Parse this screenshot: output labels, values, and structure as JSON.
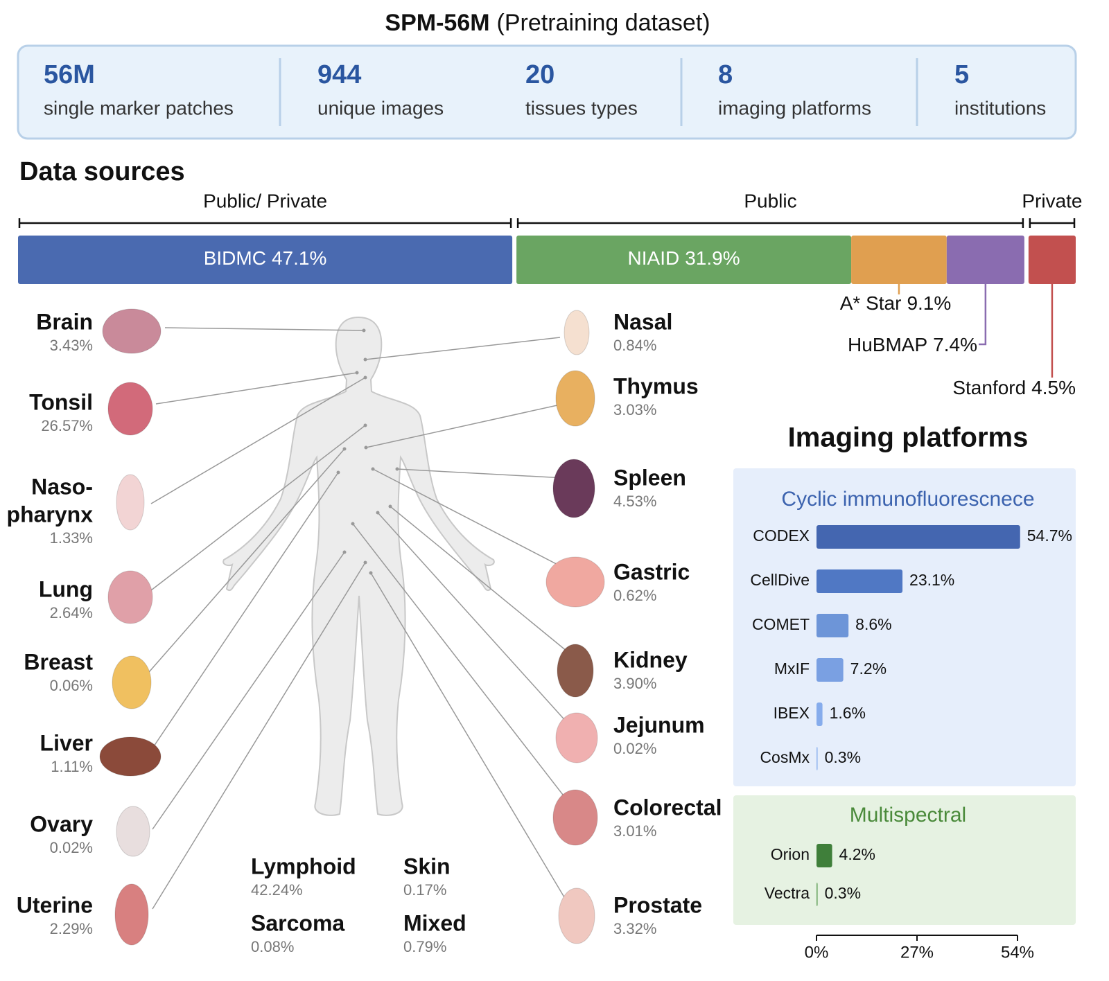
{
  "title": {
    "bold": "SPM-56M",
    "rest": "(Pretraining dataset)"
  },
  "stats": [
    {
      "value": "56M",
      "label": "single marker patches"
    },
    {
      "value": "944",
      "label": "unique images"
    },
    {
      "value": "20",
      "label": "tissues types"
    },
    {
      "value": "8",
      "label": "imaging platforms"
    },
    {
      "value": "5",
      "label": "institutions"
    }
  ],
  "tissues": {
    "left": [
      {
        "name": "Brain",
        "value": "3.43%"
      },
      {
        "name": "Tonsil",
        "value": "26.57%"
      },
      {
        "name": [
          "Naso-",
          "pharynx"
        ],
        "value": "1.33%"
      },
      {
        "name": "Lung",
        "value": "2.64%"
      },
      {
        "name": "Breast",
        "value": "0.06%"
      },
      {
        "name": "Liver",
        "value": "1.11%"
      },
      {
        "name": "Ovary",
        "value": "0.02%"
      },
      {
        "name": "Uterine",
        "value": "2.29%"
      }
    ],
    "right": [
      {
        "name": "Nasal",
        "value": "0.84%"
      },
      {
        "name": "Thymus",
        "value": "3.03%"
      },
      {
        "name": "Spleen",
        "value": "4.53%"
      },
      {
        "name": "Gastric",
        "value": "0.62%"
      },
      {
        "name": "Kidney",
        "value": "3.90%"
      },
      {
        "name": "Jejunum",
        "value": "0.02%"
      },
      {
        "name": "Colorectal",
        "value": "3.01%"
      },
      {
        "name": "Prostate",
        "value": "3.32%"
      }
    ],
    "bottom": [
      {
        "name": "Lymphoid",
        "value": "42.24%"
      },
      {
        "name": "Skin",
        "value": "0.17%"
      },
      {
        "name": "Sarcoma",
        "value": "0.08%"
      },
      {
        "name": "Mixed",
        "value": "0.79%"
      }
    ]
  },
  "chart_data": [
    {
      "type": "stacked-bar",
      "title": "Data sources",
      "categories": [
        "BIDMC",
        "NIAID",
        "A* Star",
        "HuBMAP",
        "Stanford"
      ],
      "values": [
        47.1,
        31.9,
        9.1,
        7.4,
        4.5
      ],
      "value_labels": [
        "47.1%",
        "31.9%",
        "9.1%",
        "7.4%",
        "4.5%"
      ],
      "colors": [
        "#4a6ab0",
        "#6aa562",
        "#e09f50",
        "#8a6cb0",
        "#c2504f"
      ],
      "groups": [
        {
          "label": "Public/ Private",
          "categories": [
            "BIDMC"
          ]
        },
        {
          "label": "Public",
          "categories": [
            "NIAID",
            "A* Star",
            "HuBMAP"
          ]
        },
        {
          "label": "Private",
          "categories": [
            "Stanford"
          ]
        }
      ]
    },
    {
      "type": "bar",
      "title": "Imaging platforms",
      "xlim": [
        0,
        54
      ],
      "xticks": [
        {
          "value": 0,
          "label": "0%"
        },
        {
          "value": 27,
          "label": "27%"
        },
        {
          "value": 54,
          "label": "54%"
        }
      ],
      "panels": [
        {
          "title": "Cyclic immunofluorescnece",
          "title_color": "#3b62ae",
          "background": "#e6eefb",
          "categories": [
            "CODEX",
            "CellDive",
            "COMET",
            "MxIF",
            "IBEX",
            "CosMx"
          ],
          "values": [
            54.7,
            23.1,
            8.6,
            7.2,
            1.6,
            0.3
          ],
          "value_labels": [
            "54.7%",
            "23.1%",
            "8.6%",
            "7.2%",
            "1.6%",
            "0.3%"
          ],
          "colors": [
            "#4466b0",
            "#5078c4",
            "#6d95d8",
            "#7aa0e2",
            "#86acec",
            "#93b6ef"
          ]
        },
        {
          "title": "Multispectral",
          "title_color": "#4a8a3a",
          "background": "#e6f2e2",
          "categories": [
            "Orion",
            "Vectra"
          ],
          "values": [
            4.2,
            0.3
          ],
          "value_labels": [
            "4.2%",
            "0.3%"
          ],
          "colors": [
            "#3f7f3a",
            "#6aa562"
          ]
        }
      ]
    }
  ]
}
